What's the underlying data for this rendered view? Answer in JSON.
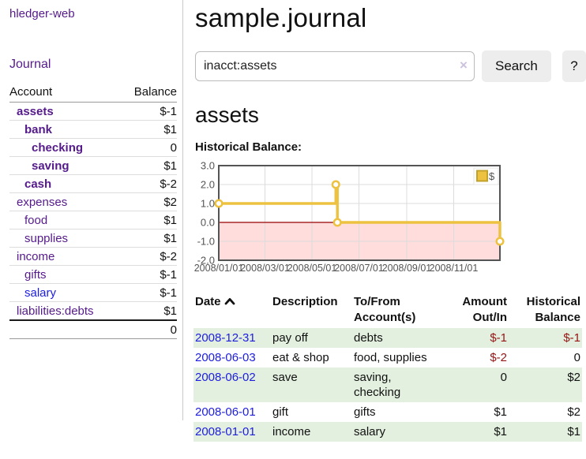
{
  "app": {
    "title": "hledger-web",
    "nav_journal_label": "Journal"
  },
  "sidebar": {
    "columns": [
      "Account",
      "Balance"
    ],
    "rows": [
      {
        "name": "assets",
        "level": 1,
        "bold": true,
        "link": "purple",
        "balance": "$-1",
        "balance_class": "neg b"
      },
      {
        "name": "bank",
        "level": 2,
        "bold": true,
        "link": "purple",
        "balance": "$1",
        "balance_class": "b"
      },
      {
        "name": "checking",
        "level": 3,
        "bold": true,
        "link": "purple",
        "balance": "0",
        "balance_class": "b"
      },
      {
        "name": "saving",
        "level": 3,
        "bold": true,
        "link": "purple",
        "balance": "$1",
        "balance_class": "b"
      },
      {
        "name": "cash",
        "level": 2,
        "bold": true,
        "link": "purple",
        "balance": "$-2",
        "balance_class": "neg b"
      },
      {
        "name": "expenses",
        "level": 1,
        "bold": false,
        "link": "purple",
        "balance": "$2",
        "balance_class": ""
      },
      {
        "name": "food",
        "level": 2,
        "bold": false,
        "link": "purple",
        "balance": "$1",
        "balance_class": ""
      },
      {
        "name": "supplies",
        "level": 2,
        "bold": false,
        "link": "purple",
        "balance": "$1",
        "balance_class": ""
      },
      {
        "name": "income",
        "level": 1,
        "bold": false,
        "link": "purple",
        "balance": "$-2",
        "balance_class": "rose"
      },
      {
        "name": "gifts",
        "level": 2,
        "bold": false,
        "link": "purple",
        "balance": "$-1",
        "balance_class": "rose"
      },
      {
        "name": "salary",
        "level": 2,
        "bold": false,
        "link": "blue",
        "balance": "$-1",
        "balance_class": "rose"
      },
      {
        "name": "liabilities:debts",
        "level": 1,
        "bold": false,
        "link": "purple",
        "balance": "$1",
        "balance_class": ""
      }
    ],
    "total": "0"
  },
  "header": {
    "title": "sample.journal"
  },
  "search": {
    "value": "inacct:assets",
    "clear_icon": "×",
    "button_label": "Search",
    "help_label": "?"
  },
  "report": {
    "heading": "assets",
    "chart_label": "Historical Balance:"
  },
  "chart_data": {
    "type": "line",
    "step": true,
    "title": "Historical Balance:",
    "x_start": "2008-01-01",
    "x_end": "2008-12-31",
    "series": [
      {
        "name": "$",
        "color": "#EDC240",
        "points": [
          [
            "2008-01-01",
            1
          ],
          [
            "2008-06-01",
            2
          ],
          [
            "2008-06-03",
            0
          ],
          [
            "2008-12-31",
            -1
          ]
        ]
      }
    ],
    "x_ticks": [
      "2008/01/01",
      "2008/03/01",
      "2008/05/01",
      "2008/07/01",
      "2008/09/01",
      "2008/11/01"
    ],
    "y_ticks": [
      "3.0",
      "2.0",
      "1.0",
      "0.0",
      "-1.0",
      "-2.0"
    ],
    "ylim": [
      -2,
      3
    ],
    "grid": true,
    "legend": "$",
    "legend_position": "top-right",
    "negative_region_color": "#ffdddd",
    "zero_line_color": "#990000",
    "border_color": "#545454",
    "tick_color": "#545454"
  },
  "table": {
    "headers": [
      "Date",
      "Description",
      "To/From Account(s)",
      "Amount Out/In",
      "Historical Balance"
    ],
    "rows": [
      {
        "date": "2008-12-31",
        "description": "pay off",
        "accounts": "debts",
        "amount": "$-1",
        "balance": "$-1",
        "shaded": true
      },
      {
        "date": "2008-06-03",
        "description": "eat & shop",
        "accounts": "food, supplies",
        "amount": "$-2",
        "balance": "0",
        "shaded": false
      },
      {
        "date": "2008-06-02",
        "description": "save",
        "accounts": "saving, checking",
        "amount": "0",
        "balance": "$2",
        "shaded": true
      },
      {
        "date": "2008-06-01",
        "description": "gift",
        "accounts": "gifts",
        "amount": "$1",
        "balance": "$2",
        "shaded": false
      },
      {
        "date": "2008-01-01",
        "description": "income",
        "accounts": "salary",
        "amount": "$1",
        "balance": "$1",
        "shaded": true
      }
    ]
  },
  "colors": {
    "link_purple": "#551A8B",
    "link_blue": "#1d1de0",
    "negative_strong": "#951414",
    "negative_soft": "#c47272",
    "row_shade_green": "#e3f0df",
    "series_gold": "#EDC240"
  }
}
